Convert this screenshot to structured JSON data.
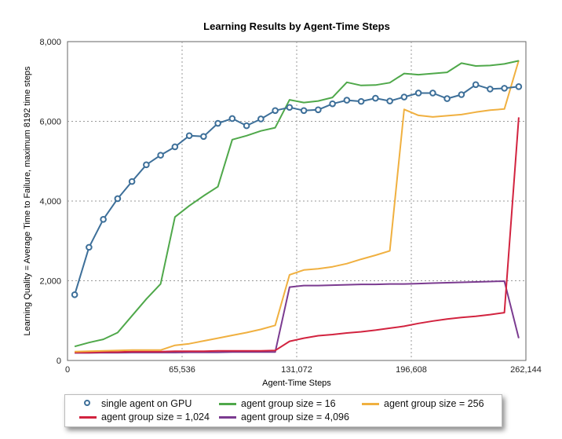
{
  "chart_data": {
    "type": "line",
    "title": "Learning Results by Agent-Time Steps",
    "xlabel": "Agent-Time Steps",
    "ylabel": "Learning Quality = Average Time to Failure, maximum 8192 time steps",
    "xlim": [
      0,
      262144
    ],
    "ylim": [
      0,
      8000
    ],
    "xticks": [
      0,
      65536,
      131072,
      196608,
      262144
    ],
    "xtick_labels": [
      "0",
      "65,536",
      "131,072",
      "196,608",
      "262,144"
    ],
    "yticks": [
      0,
      2000,
      4000,
      6000,
      8000
    ],
    "ytick_labels": [
      "0",
      "2,000",
      "4,000",
      "6,000",
      "8,000"
    ],
    "grid": true,
    "legend_position": "bottom",
    "series": [
      {
        "name": "single agent on GPU",
        "color": "#3d6f99",
        "marker": "circle",
        "x": [
          4096,
          12288,
          20480,
          28672,
          36864,
          45056,
          53248,
          61440,
          69632,
          77824,
          86016,
          94208,
          102400,
          110592,
          118784,
          126976,
          135168,
          143360,
          151552,
          159744,
          167936,
          176128,
          184320,
          192512,
          200704,
          208896,
          217088,
          225280,
          233472,
          241664,
          249856,
          258048
        ],
        "y": [
          1650,
          2840,
          3540,
          4060,
          4490,
          4910,
          5150,
          5360,
          5640,
          5620,
          5950,
          6070,
          5890,
          6060,
          6270,
          6350,
          6270,
          6290,
          6440,
          6530,
          6500,
          6580,
          6510,
          6610,
          6710,
          6710,
          6570,
          6670,
          6920,
          6810,
          6830,
          6870
        ]
      },
      {
        "name": "agent group size = 16",
        "color": "#4fa84a",
        "x": [
          4096,
          12288,
          20480,
          28672,
          36864,
          45056,
          53248,
          61440,
          69632,
          77824,
          86016,
          94208,
          102400,
          110592,
          118784,
          126976,
          135168,
          143360,
          151552,
          159744,
          167936,
          176128,
          184320,
          192512,
          200704,
          208896,
          217088,
          225280,
          233472,
          241664,
          249856,
          258048
        ],
        "y": [
          350,
          450,
          530,
          700,
          1120,
          1540,
          1920,
          3600,
          3880,
          4130,
          4360,
          5540,
          5640,
          5760,
          5840,
          6540,
          6470,
          6510,
          6600,
          6980,
          6900,
          6910,
          6970,
          7200,
          7170,
          7200,
          7230,
          7460,
          7390,
          7400,
          7440,
          7520
        ]
      },
      {
        "name": "agent group size = 256",
        "color": "#f0b040",
        "x": [
          4096,
          12288,
          20480,
          28672,
          36864,
          45056,
          53248,
          61440,
          69632,
          77824,
          86016,
          94208,
          102400,
          110592,
          118784,
          126976,
          135168,
          143360,
          151552,
          159744,
          167936,
          176128,
          184320,
          192512,
          200704,
          208896,
          217088,
          225280,
          233472,
          241664,
          249856,
          258048
        ],
        "y": [
          220,
          230,
          240,
          250,
          260,
          260,
          260,
          380,
          420,
          490,
          560,
          630,
          700,
          780,
          880,
          2150,
          2270,
          2300,
          2350,
          2430,
          2540,
          2640,
          2750,
          6300,
          6150,
          6110,
          6140,
          6170,
          6230,
          6280,
          6310,
          7530
        ]
      },
      {
        "name": "agent group size = 1,024",
        "color": "#d2233f",
        "x": [
          4096,
          12288,
          20480,
          28672,
          36864,
          45056,
          53248,
          61440,
          69632,
          77824,
          86016,
          94208,
          102400,
          110592,
          118784,
          126976,
          135168,
          143360,
          151552,
          159744,
          167936,
          176128,
          184320,
          192512,
          200704,
          208896,
          217088,
          225280,
          233472,
          241664,
          249856,
          258048
        ],
        "y": [
          200,
          200,
          210,
          210,
          220,
          220,
          220,
          230,
          230,
          230,
          240,
          240,
          240,
          240,
          250,
          480,
          560,
          620,
          650,
          690,
          720,
          760,
          810,
          860,
          930,
          990,
          1040,
          1080,
          1110,
          1150,
          1200,
          6100
        ]
      },
      {
        "name": "agent group size = 4,096",
        "color": "#7b3b90",
        "x": [
          4096,
          12288,
          20480,
          28672,
          36864,
          45056,
          53248,
          61440,
          69632,
          77824,
          86016,
          94208,
          102400,
          110592,
          118784,
          126976,
          135168,
          143360,
          151552,
          159744,
          167936,
          176128,
          184320,
          192512,
          200704,
          208896,
          217088,
          225280,
          233472,
          241664,
          249856,
          258048
        ],
        "y": [
          190,
          190,
          195,
          195,
          200,
          200,
          200,
          200,
          205,
          205,
          205,
          210,
          210,
          210,
          210,
          1840,
          1880,
          1880,
          1890,
          1900,
          1910,
          1910,
          1920,
          1920,
          1930,
          1940,
          1950,
          1960,
          1970,
          1980,
          1990,
          560
        ]
      }
    ]
  }
}
